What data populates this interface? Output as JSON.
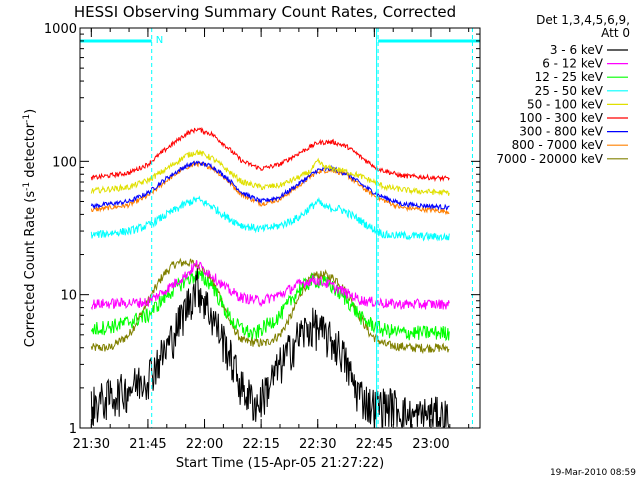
{
  "chart_data": {
    "type": "line",
    "title": "HESSI Observing Summary Count Rates, Corrected",
    "xlabel": "Start Time (15-Apr-05 21:27:22)",
    "ylabel_main": "Corrected Count Rate (s",
    "ylabel_sup1": "-1",
    "ylabel_mid": " detector",
    "ylabel_sup2": "-1",
    "ylabel_end": ")",
    "yscale": "log",
    "xlim": [
      1287,
      1393
    ],
    "ylim": [
      1,
      1000
    ],
    "x_tick_labels": [
      "21:30",
      "21:45",
      "22:00",
      "22:15",
      "22:30",
      "22:45",
      "23:00"
    ],
    "x_tick_minutes": [
      1290,
      1305,
      1320,
      1335,
      1350,
      1365,
      1380
    ],
    "y_tick_labels": [
      "1",
      "10",
      "100",
      "1000"
    ],
    "y_tick_values": [
      1,
      10,
      100,
      1000
    ],
    "legend_header": [
      "Det 1,3,4,5,6,9,",
      "Att 0"
    ],
    "footer_timestamp": "19-Mar-2010 08:59",
    "night_bars": [
      {
        "x_start": 1287,
        "x_end": 1306,
        "marker": "N"
      },
      {
        "x_start": 1366,
        "x_end": 1393,
        "marker": ""
      }
    ],
    "dashed_vlines": [
      1306,
      1366,
      1391
    ],
    "solid_vlines": [
      1366
    ],
    "series": [
      {
        "name": "3 - 6 keV",
        "color": "#000000",
        "noise": 0.35,
        "points": [
          [
            1290,
            1.5
          ],
          [
            1300,
            2
          ],
          [
            1305,
            2.5
          ],
          [
            1310,
            4
          ],
          [
            1315,
            8
          ],
          [
            1318,
            12
          ],
          [
            1322,
            7
          ],
          [
            1326,
            4
          ],
          [
            1330,
            2
          ],
          [
            1334,
            1.5
          ],
          [
            1340,
            3
          ],
          [
            1345,
            5
          ],
          [
            1349,
            6
          ],
          [
            1352,
            5
          ],
          [
            1356,
            4
          ],
          [
            1360,
            2
          ],
          [
            1364,
            1.5
          ],
          [
            1370,
            1.5
          ],
          [
            1375,
            1.2
          ],
          [
            1380,
            1.3
          ],
          [
            1385,
            1.2
          ]
        ]
      },
      {
        "name": "6 - 12 keV",
        "color": "#ff00ff",
        "noise": 0.09,
        "points": [
          [
            1290,
            8.5
          ],
          [
            1305,
            8.8
          ],
          [
            1310,
            11
          ],
          [
            1315,
            14
          ],
          [
            1318,
            17
          ],
          [
            1322,
            14
          ],
          [
            1326,
            11
          ],
          [
            1330,
            9.5
          ],
          [
            1335,
            9
          ],
          [
            1340,
            10
          ],
          [
            1345,
            12
          ],
          [
            1349,
            13
          ],
          [
            1353,
            12
          ],
          [
            1357,
            10.5
          ],
          [
            1362,
            9
          ],
          [
            1370,
            8.5
          ],
          [
            1385,
            8.5
          ]
        ]
      },
      {
        "name": "12 - 25 keV",
        "color": "#00ff00",
        "noise": 0.13,
        "points": [
          [
            1290,
            5.5
          ],
          [
            1298,
            6
          ],
          [
            1305,
            7
          ],
          [
            1310,
            10
          ],
          [
            1315,
            13
          ],
          [
            1318,
            14
          ],
          [
            1322,
            12
          ],
          [
            1325,
            8
          ],
          [
            1328,
            6
          ],
          [
            1333,
            5
          ],
          [
            1340,
            7
          ],
          [
            1345,
            11
          ],
          [
            1349,
            13
          ],
          [
            1353,
            12
          ],
          [
            1358,
            9
          ],
          [
            1362,
            6.5
          ],
          [
            1367,
            5.5
          ],
          [
            1372,
            5.2
          ],
          [
            1385,
            5.2
          ]
        ]
      },
      {
        "name": "25 - 50 keV",
        "color": "#00ffff",
        "noise": 0.07,
        "points": [
          [
            1290,
            28
          ],
          [
            1300,
            30
          ],
          [
            1305,
            33
          ],
          [
            1310,
            40
          ],
          [
            1315,
            48
          ],
          [
            1318,
            52
          ],
          [
            1322,
            46
          ],
          [
            1326,
            38
          ],
          [
            1330,
            33
          ],
          [
            1335,
            31
          ],
          [
            1340,
            33
          ],
          [
            1345,
            38
          ],
          [
            1348,
            45
          ],
          [
            1350,
            50
          ],
          [
            1352,
            45
          ],
          [
            1356,
            44
          ],
          [
            1360,
            38
          ],
          [
            1364,
            32
          ],
          [
            1368,
            28
          ],
          [
            1385,
            27
          ]
        ]
      },
      {
        "name": "50 - 100 keV",
        "color": "#e0e000",
        "noise": 0.05,
        "points": [
          [
            1290,
            60
          ],
          [
            1300,
            64
          ],
          [
            1305,
            72
          ],
          [
            1310,
            88
          ],
          [
            1315,
            110
          ],
          [
            1318,
            118
          ],
          [
            1322,
            106
          ],
          [
            1326,
            86
          ],
          [
            1330,
            70
          ],
          [
            1335,
            64
          ],
          [
            1340,
            66
          ],
          [
            1345,
            76
          ],
          [
            1348,
            84
          ],
          [
            1350,
            100
          ],
          [
            1352,
            90
          ],
          [
            1356,
            86
          ],
          [
            1360,
            80
          ],
          [
            1364,
            72
          ],
          [
            1368,
            64
          ],
          [
            1375,
            60
          ],
          [
            1385,
            58
          ]
        ]
      },
      {
        "name": "100 - 300 keV",
        "color": "#ff0000",
        "noise": 0.04,
        "points": [
          [
            1290,
            75
          ],
          [
            1300,
            82
          ],
          [
            1305,
            95
          ],
          [
            1310,
            125
          ],
          [
            1315,
            160
          ],
          [
            1318,
            175
          ],
          [
            1322,
            160
          ],
          [
            1326,
            128
          ],
          [
            1330,
            100
          ],
          [
            1335,
            88
          ],
          [
            1340,
            95
          ],
          [
            1345,
            115
          ],
          [
            1350,
            138
          ],
          [
            1354,
            140
          ],
          [
            1358,
            128
          ],
          [
            1362,
            105
          ],
          [
            1366,
            88
          ],
          [
            1372,
            78
          ],
          [
            1385,
            74
          ]
        ]
      },
      {
        "name": "300 - 800 keV",
        "color": "#0000ff",
        "noise": 0.04,
        "points": [
          [
            1290,
            46
          ],
          [
            1300,
            50
          ],
          [
            1305,
            58
          ],
          [
            1310,
            75
          ],
          [
            1315,
            92
          ],
          [
            1318,
            98
          ],
          [
            1322,
            92
          ],
          [
            1326,
            75
          ],
          [
            1330,
            58
          ],
          [
            1335,
            50
          ],
          [
            1340,
            54
          ],
          [
            1345,
            68
          ],
          [
            1350,
            86
          ],
          [
            1354,
            88
          ],
          [
            1358,
            80
          ],
          [
            1362,
            66
          ],
          [
            1366,
            56
          ],
          [
            1372,
            48
          ],
          [
            1385,
            45
          ]
        ]
      },
      {
        "name": "800 - 7000 keV",
        "color": "#ff8000",
        "noise": 0.04,
        "points": [
          [
            1290,
            43
          ],
          [
            1300,
            47
          ],
          [
            1305,
            55
          ],
          [
            1310,
            72
          ],
          [
            1315,
            90
          ],
          [
            1318,
            96
          ],
          [
            1322,
            90
          ],
          [
            1326,
            72
          ],
          [
            1330,
            56
          ],
          [
            1335,
            48
          ],
          [
            1340,
            52
          ],
          [
            1345,
            66
          ],
          [
            1350,
            84
          ],
          [
            1354,
            86
          ],
          [
            1358,
            78
          ],
          [
            1362,
            63
          ],
          [
            1366,
            53
          ],
          [
            1372,
            45
          ],
          [
            1385,
            42
          ]
        ]
      },
      {
        "name": "7000 - 20000 keV",
        "color": "#808000",
        "noise": 0.08,
        "points": [
          [
            1290,
            4
          ],
          [
            1295,
            4
          ],
          [
            1300,
            5
          ],
          [
            1303,
            7
          ],
          [
            1306,
            10
          ],
          [
            1309,
            14
          ],
          [
            1312,
            17
          ],
          [
            1315,
            17.5
          ],
          [
            1318,
            17
          ],
          [
            1321,
            14
          ],
          [
            1324,
            10
          ],
          [
            1327,
            6
          ],
          [
            1330,
            4.5
          ],
          [
            1336,
            4.3
          ],
          [
            1340,
            5
          ],
          [
            1343,
            7
          ],
          [
            1346,
            11
          ],
          [
            1349,
            14
          ],
          [
            1352,
            14
          ],
          [
            1355,
            13
          ],
          [
            1358,
            10
          ],
          [
            1361,
            7
          ],
          [
            1364,
            5
          ],
          [
            1368,
            4.2
          ],
          [
            1375,
            4
          ],
          [
            1385,
            4
          ]
        ]
      }
    ]
  }
}
